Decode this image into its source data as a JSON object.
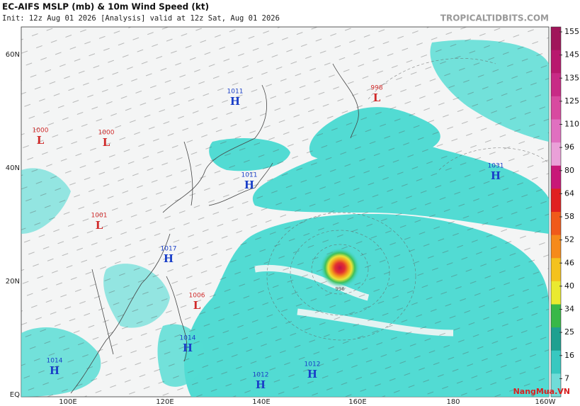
{
  "header": {
    "title": "EC-AIFS MSLP (mb) & 10m Wind Speed (kt)",
    "subtitle": "Init: 12z Aug 01 2026   [Analysis]   valid at 12z Sat, Aug 01 2026",
    "source": "TROPICALTIDBITS.COM"
  },
  "map": {
    "lat_labels": [
      "60N",
      "40N",
      "20N",
      "EQ"
    ],
    "lon_labels": [
      "100E",
      "120E",
      "140E",
      "160E",
      "180",
      "160W"
    ],
    "pressure_centers": [
      {
        "value": 1011,
        "symbol": "H"
      },
      {
        "value": 998,
        "symbol": "L"
      },
      {
        "value": 1000,
        "symbol": "L"
      },
      {
        "value": 1000,
        "symbol": "L"
      },
      {
        "value": 1031,
        "symbol": "H"
      },
      {
        "value": 1011,
        "symbol": "H"
      },
      {
        "value": 1001,
        "symbol": "L"
      },
      {
        "value": 1017,
        "symbol": "H"
      },
      {
        "value": 1006,
        "symbol": "L"
      },
      {
        "value": 1014,
        "symbol": "H"
      },
      {
        "value": 1014,
        "symbol": "H"
      },
      {
        "value": 1012,
        "symbol": "H"
      },
      {
        "value": 1012,
        "symbol": "H"
      }
    ],
    "storm_pressure": 996
  },
  "colorbar": {
    "ticks": [
      155,
      145,
      135,
      125,
      110,
      96,
      80,
      64,
      58,
      52,
      46,
      40,
      34,
      25,
      16,
      7
    ]
  },
  "watermark": "NangMua.VN"
}
